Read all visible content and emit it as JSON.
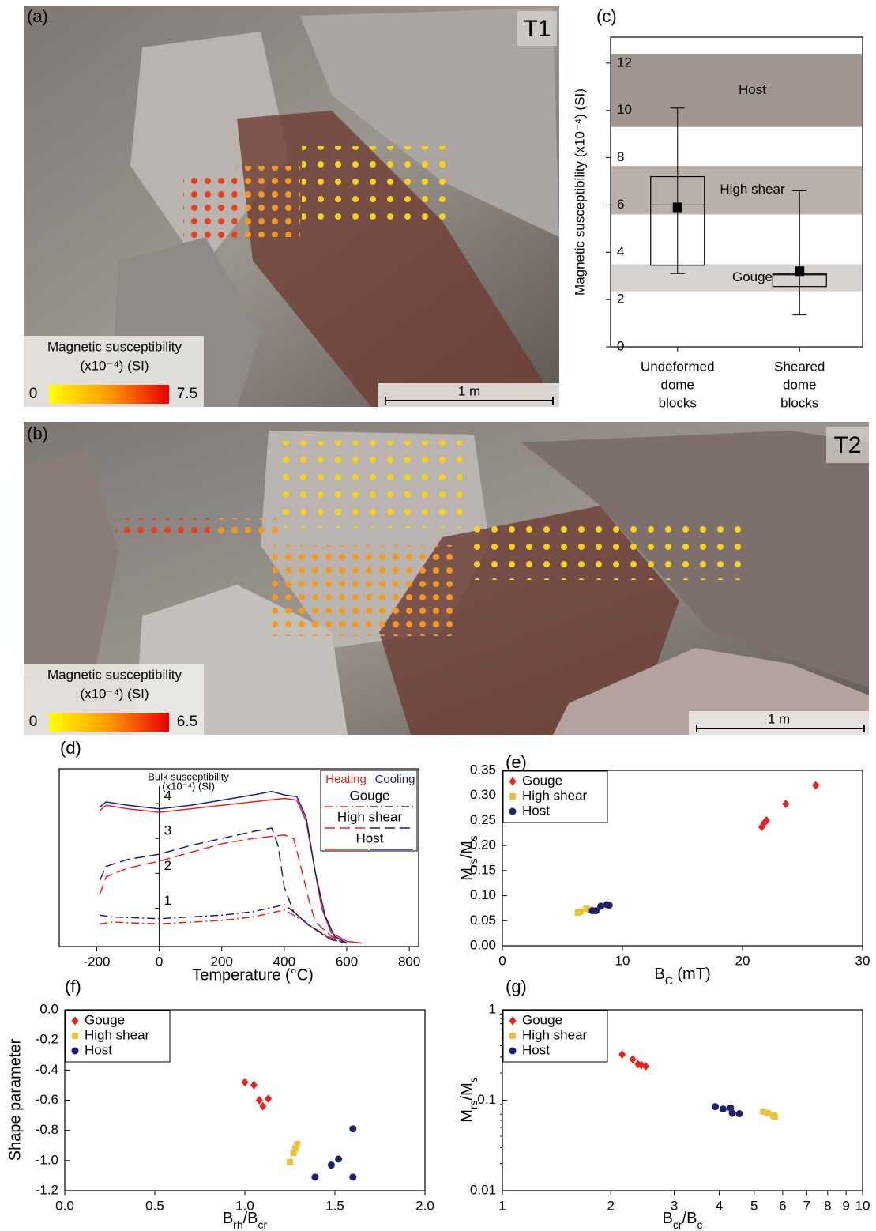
{
  "photos": [
    {
      "label": "(a)",
      "tag": "T1",
      "colorbar": {
        "title": "Magnetic susceptibility",
        "unit": "(x10⁻⁴) (SI)",
        "min": 0,
        "max": 7.5
      },
      "scale": "1 m"
    },
    {
      "label": "(b)",
      "tag": "T2",
      "colorbar": {
        "title": "Magnetic susceptibility",
        "unit": "(x10⁻⁴) (SI)",
        "min": 0,
        "max": 6.5
      },
      "scale": "1 m"
    }
  ],
  "chart_data": [
    {
      "type": "box",
      "label": "(c)",
      "ylabel": "Magnetic susceptibility (x10⁻⁴) (SI)",
      "categories": [
        [
          "Undeformed",
          "dome",
          "blocks"
        ],
        [
          "Sheared",
          "dome",
          "blocks"
        ]
      ],
      "ylim": [
        0,
        13.1
      ],
      "yticks": [
        0,
        2,
        4,
        6,
        8,
        10,
        12
      ],
      "bands": [
        {
          "name": "Host",
          "range": [
            9.3,
            12.4
          ],
          "color": "#a1968f"
        },
        {
          "name": "High shear",
          "range": [
            5.6,
            7.65
          ],
          "color": "#bab0aa"
        },
        {
          "name": "Gouge",
          "range": [
            2.35,
            3.5
          ],
          "color": "#d6d2cf"
        }
      ],
      "boxes": [
        {
          "whisker": [
            3.1,
            10.1
          ],
          "box": [
            3.45,
            7.2
          ],
          "median": 6.0,
          "mean": 5.9
        },
        {
          "whisker": [
            1.35,
            6.6
          ],
          "box": [
            2.55,
            3.1
          ],
          "median": 3.05,
          "mean": 3.2
        }
      ]
    },
    {
      "type": "line",
      "label": "(d)",
      "xlabel": "Temperature (°C)",
      "ylabel": [
        "Bulk susceptibility",
        "(x10⁻⁴) (SI)"
      ],
      "xlim": [
        -320,
        830
      ],
      "xticks": [
        -200,
        0,
        200,
        400,
        600,
        800
      ],
      "ylim": [
        -0.1,
        5
      ],
      "yticks": [
        1,
        2,
        3,
        4
      ],
      "legend_headers": [
        {
          "name": "Heating",
          "color": "#e8231f"
        },
        {
          "name": "Cooling",
          "color": "#1c1f7e"
        }
      ],
      "series": [
        {
          "name": "Gouge",
          "dash": "dashdot",
          "curves": [
            {
              "color": "#e8231f",
              "x": [
                -190,
                -150,
                0,
                200,
                300,
                400,
                450,
                500,
                550,
                600
              ],
              "values": [
                0.55,
                0.6,
                0.55,
                0.65,
                0.75,
                0.95,
                0.7,
                0.4,
                0.15,
                0
              ]
            },
            {
              "color": "#1c1f7e",
              "x": [
                -190,
                -150,
                0,
                200,
                300,
                400,
                430,
                480,
                550,
                600
              ],
              "values": [
                0.8,
                0.75,
                0.7,
                0.8,
                0.9,
                1.1,
                0.9,
                0.5,
                0.1,
                0
              ]
            }
          ]
        },
        {
          "name": "High shear",
          "dash": "longdash",
          "curves": [
            {
              "color": "#e8231f",
              "x": [
                -190,
                -170,
                -100,
                0,
                100,
                200,
                300,
                400,
                430,
                450,
                480,
                500,
                550,
                600
              ],
              "values": [
                1.4,
                1.9,
                2.15,
                2.35,
                2.6,
                2.85,
                3.0,
                3.1,
                3.0,
                2.3,
                1.2,
                0.6,
                0.2,
                0
              ]
            },
            {
              "color": "#1c1f7e",
              "x": [
                -190,
                -170,
                -100,
                0,
                100,
                200,
                300,
                360,
                380,
                400,
                430,
                480,
                550,
                600
              ],
              "values": [
                1.8,
                2.2,
                2.4,
                2.55,
                2.8,
                3.0,
                3.2,
                3.3,
                2.8,
                1.6,
                0.9,
                0.5,
                0.1,
                0
              ]
            }
          ]
        },
        {
          "name": "Host",
          "dash": "solid",
          "curves": [
            {
              "color": "#e8231f",
              "x": [
                -190,
                -170,
                -100,
                0,
                100,
                200,
                300,
                400,
                440,
                470,
                500,
                520,
                550,
                600,
                650
              ],
              "values": [
                3.8,
                3.95,
                3.85,
                3.75,
                3.85,
                3.95,
                4.05,
                4.15,
                4.1,
                3.5,
                2.0,
                1.0,
                0.3,
                0.05,
                0
              ]
            },
            {
              "color": "#1c1f7e",
              "x": [
                -190,
                -170,
                -100,
                0,
                100,
                200,
                300,
                360,
                400,
                440,
                470,
                500,
                530,
                560,
                600
              ],
              "values": [
                3.9,
                4.05,
                3.95,
                3.85,
                3.95,
                4.1,
                4.25,
                4.35,
                4.25,
                4.2,
                3.6,
                2.0,
                0.8,
                0.2,
                0
              ]
            }
          ]
        }
      ]
    },
    {
      "type": "scatter",
      "label": "(e)",
      "xlabel": [
        {
          "text": "B"
        },
        {
          "text": "C",
          "sub": true
        },
        {
          "text": "  (mT)"
        }
      ],
      "ylabel": [
        {
          "text": "M"
        },
        {
          "text": "rs",
          "sub": true
        },
        {
          "text": "/M"
        },
        {
          "text": "s",
          "sub": true
        }
      ],
      "xlim": [
        0,
        30
      ],
      "xticks": [
        0,
        10,
        20,
        30
      ],
      "ylim": [
        0,
        0.35
      ],
      "yticks": [
        {
          "value": 0,
          "label": "0.00"
        },
        0.05,
        {
          "value": 0.1,
          "label": "0.10"
        },
        0.15,
        {
          "value": 0.2,
          "label": "0.20"
        },
        0.25,
        {
          "value": 0.3,
          "label": "0.30"
        },
        0.35
      ],
      "series": [
        {
          "name": "Gouge",
          "color": "#e8231f",
          "marker": "diamond",
          "x": [
            21.6,
            21.8,
            22.0,
            23.6,
            26.1
          ],
          "values": [
            0.237,
            0.245,
            0.25,
            0.283,
            0.32
          ]
        },
        {
          "name": "High shear",
          "color": "#e8c33a",
          "marker": "square",
          "x": [
            6.3,
            6.5,
            7.0,
            7.3
          ],
          "values": [
            0.066,
            0.068,
            0.074,
            0.072
          ]
        },
        {
          "name": "Host",
          "color": "#1c1f6e",
          "marker": "circle",
          "x": [
            7.5,
            7.8,
            8.2,
            8.7,
            8.9
          ],
          "values": [
            0.07,
            0.07,
            0.079,
            0.082,
            0.081
          ]
        }
      ]
    },
    {
      "type": "scatter",
      "label": "(f)",
      "xlabel": [
        {
          "text": "B"
        },
        {
          "text": "rh",
          "sub": true
        },
        {
          "text": "/B"
        },
        {
          "text": "cr",
          "sub": true
        }
      ],
      "ylabel": "Shape parameter",
      "xlim": [
        0,
        2
      ],
      "xticks": [
        {
          "value": 0,
          "label": "0.0"
        },
        0.5,
        {
          "value": 1,
          "label": "1.0"
        },
        1.5,
        {
          "value": 2,
          "label": "2.0"
        }
      ],
      "ylim": [
        -1.2,
        0
      ],
      "yticks": [
        -1.2,
        {
          "value": -1,
          "label": "-1.0"
        },
        -0.8,
        -0.6,
        -0.4,
        -0.2,
        {
          "value": 0,
          "label": "0.0"
        }
      ],
      "series": [
        {
          "name": "Gouge",
          "color": "#e8231f",
          "marker": "diamond",
          "x": [
            1.0,
            1.05,
            1.08,
            1.1,
            1.13
          ],
          "values": [
            -0.48,
            -0.5,
            -0.6,
            -0.64,
            -0.59
          ]
        },
        {
          "name": "High shear",
          "color": "#e8c33a",
          "marker": "square",
          "x": [
            1.25,
            1.27,
            1.28,
            1.29
          ],
          "values": [
            -1.01,
            -0.95,
            -0.92,
            -0.89
          ]
        },
        {
          "name": "Host",
          "color": "#1c1f6e",
          "marker": "circle",
          "x": [
            1.39,
            1.48,
            1.52,
            1.6,
            1.6
          ],
          "values": [
            -1.11,
            -1.03,
            -0.99,
            -0.79,
            -1.11
          ]
        }
      ]
    },
    {
      "type": "scatter",
      "label": "(g)",
      "xlabel": [
        {
          "text": "B"
        },
        {
          "text": "cr",
          "sub": true
        },
        {
          "text": "/B"
        },
        {
          "text": "c",
          "sub": true
        }
      ],
      "ylabel": [
        {
          "text": "M"
        },
        {
          "text": "rs",
          "sub": true
        },
        {
          "text": "/M"
        },
        {
          "text": "s",
          "sub": true
        }
      ],
      "xlog": true,
      "ylog": true,
      "xlim": [
        1,
        10
      ],
      "xticks": [
        1,
        2,
        3,
        4,
        5,
        6,
        7,
        8,
        9,
        10
      ],
      "ylim": [
        0.01,
        1
      ],
      "yticks": [
        0.01,
        0.1,
        1
      ],
      "series": [
        {
          "name": "Gouge",
          "color": "#e8231f",
          "marker": "diamond",
          "x": [
            2.15,
            2.3,
            2.38,
            2.43,
            2.5
          ],
          "values": [
            0.32,
            0.283,
            0.25,
            0.245,
            0.237
          ]
        },
        {
          "name": "High shear",
          "color": "#e8c33a",
          "marker": "square",
          "x": [
            5.3,
            5.45,
            5.65,
            5.7
          ],
          "values": [
            0.075,
            0.072,
            0.068,
            0.066
          ]
        },
        {
          "name": "Host",
          "color": "#1c1f6e",
          "marker": "circle",
          "x": [
            3.9,
            4.1,
            4.3,
            4.35,
            4.55
          ],
          "values": [
            0.085,
            0.08,
            0.082,
            0.072,
            0.071
          ]
        }
      ]
    }
  ]
}
